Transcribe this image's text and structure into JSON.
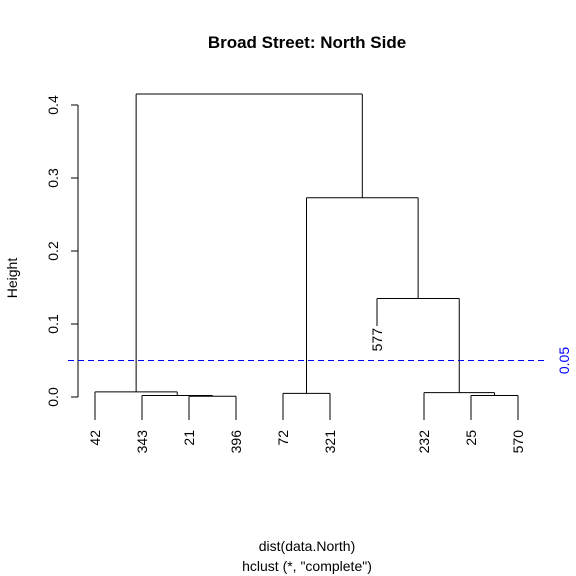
{
  "chart_data": {
    "type": "dendrogram",
    "title": "Broad Street: North Side",
    "ylabel": "Height",
    "xlabel": "dist(data.North)",
    "sub": "hclust (*, \"complete\")",
    "ylim": [
      0,
      0.42
    ],
    "yticks": [
      0.0,
      0.1,
      0.2,
      0.3,
      0.4
    ],
    "ytick_labels": [
      "0.0",
      "0.1",
      "0.2",
      "0.3",
      "0.4"
    ],
    "leaves": [
      "42",
      "343",
      "21",
      "396",
      "72",
      "321",
      "577",
      "232",
      "25",
      "570"
    ],
    "merges": [
      {
        "height": 0.001,
        "left": "21",
        "right": "396"
      },
      {
        "height": 0.002,
        "left": "343",
        "right": "21|396"
      },
      {
        "height": 0.007,
        "left": "42",
        "right": "343|21|396"
      },
      {
        "height": 0.005,
        "left": "72",
        "right": "321"
      },
      {
        "height": 0.002,
        "left": "25",
        "right": "570"
      },
      {
        "height": 0.006,
        "left": "232",
        "right": "25|570"
      },
      {
        "height": 0.135,
        "left": "577",
        "right": "232|25|570"
      },
      {
        "height": 0.273,
        "left": "72|321",
        "right": "577|232|25|570"
      },
      {
        "height": 0.415,
        "left": "42|343|21|396",
        "right": "72|321|577|232|25|570"
      }
    ],
    "cut_line": {
      "height": 0.05,
      "label": "0.05",
      "color": "#0000ff",
      "style": "dashed"
    },
    "line_color": "#000000"
  }
}
